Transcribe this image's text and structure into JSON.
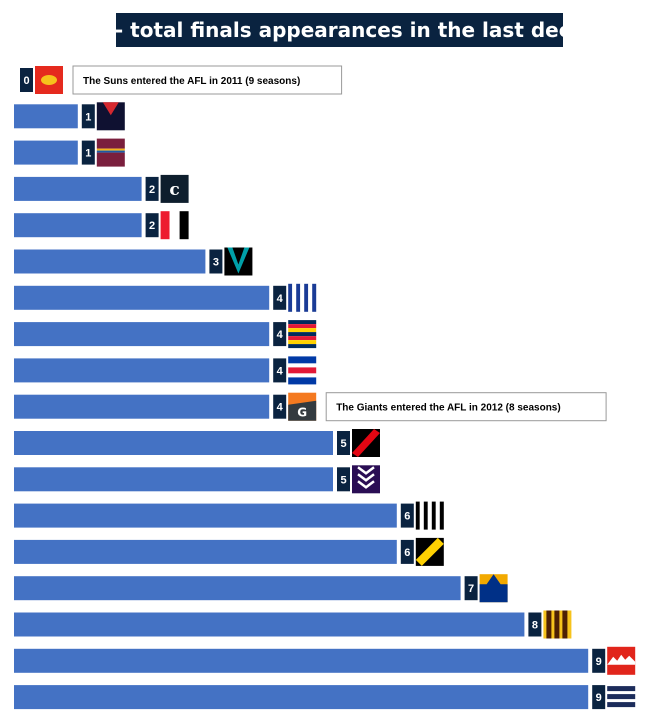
{
  "chart_data": {
    "type": "bar",
    "orientation": "horizontal",
    "title": "AFL - total finals appearances in the last decade",
    "xlabel": "",
    "ylabel": "",
    "xlim": [
      0,
      9
    ],
    "grid": false,
    "legend": "none",
    "categories": [
      "guernsey-1",
      "guernsey-2",
      "guernsey-3",
      "guernsey-4",
      "guernsey-5",
      "guernsey-6",
      "guernsey-7",
      "guernsey-8",
      "guernsey-9",
      "guernsey-10",
      "guernsey-11",
      "guernsey-12",
      "guernsey-13",
      "guernsey-14",
      "guernsey-15",
      "guernsey-16",
      "guernsey-17",
      "guernsey-18"
    ],
    "values": [
      0,
      1,
      1,
      2,
      2,
      3,
      4,
      4,
      4,
      4,
      5,
      5,
      6,
      6,
      7,
      8,
      9,
      9
    ],
    "annotations": [
      {
        "row": 0,
        "text": "The Suns entered the AFL in 2011 (9 seasons)"
      },
      {
        "row": 9,
        "text": "The Giants entered the AFL in 2012 (8 seasons)"
      }
    ],
    "icons": [
      "gold-coast-suns-icon",
      "melbourne-icon",
      "brisbane-lions-icon",
      "carlton-icon",
      "st-kilda-icon",
      "port-adelaide-icon",
      "north-melbourne-icon",
      "adelaide-icon",
      "western-bulldogs-icon",
      "gws-giants-icon",
      "essendon-icon",
      "fremantle-icon",
      "collingwood-icon",
      "richmond-icon",
      "west-coast-icon",
      "hawthorn-icon",
      "sydney-swans-icon",
      "geelong-icon"
    ]
  },
  "colors": {
    "bar": "#4472c4",
    "value_badge": "#0a2340",
    "title_bg": "#0a2340",
    "title_text": "#ffffff",
    "note_border": "#999999"
  }
}
